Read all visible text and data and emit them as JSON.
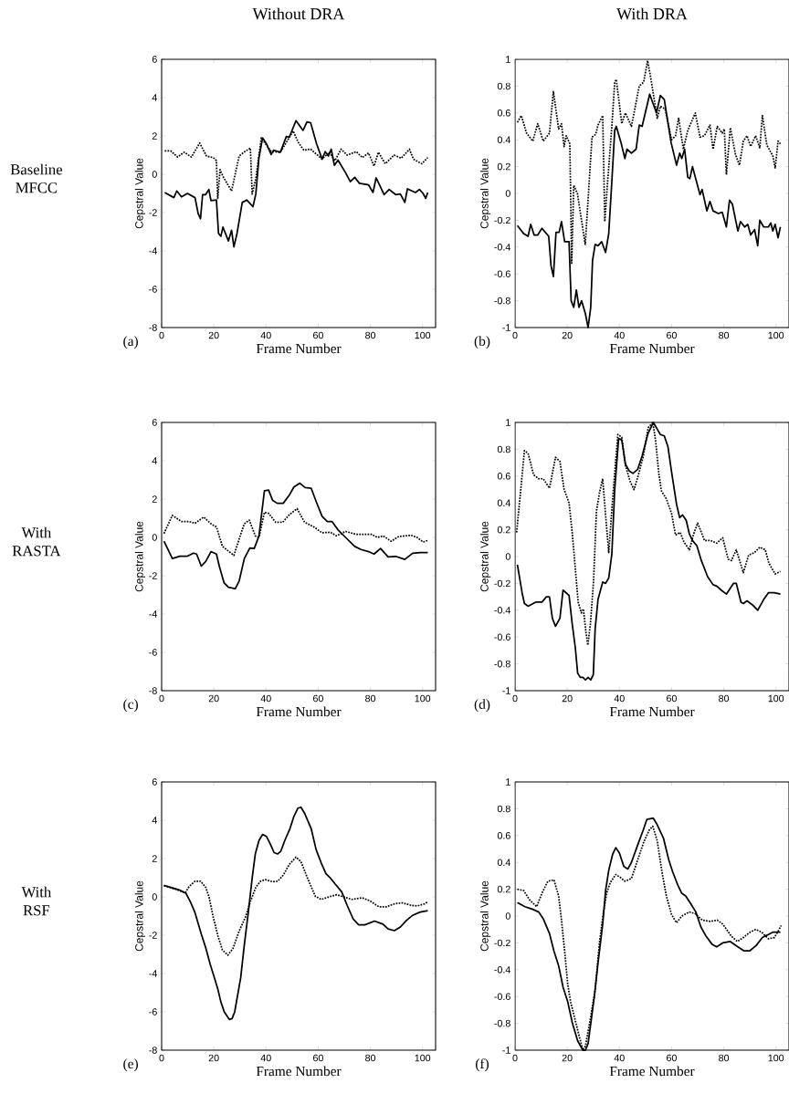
{
  "chart_data": [
    {
      "type": "line",
      "title": "Without DRA",
      "xlabel": "Frame Number",
      "ylabel": "Cepstral Value",
      "xlim": [
        0,
        105
      ],
      "ylim": [
        -8,
        6
      ],
      "xticks": [
        0,
        20,
        40,
        60,
        80,
        100
      ],
      "yticks": [
        -8,
        -6,
        -4,
        -2,
        0,
        2,
        4,
        6
      ],
      "annotations": [
        "(a)",
        "Baseline MFCC"
      ],
      "series": [
        {
          "color": "#000000",
          "line_style": "solid",
          "x": [
            1.2,
            4.7,
            5.8,
            7.6,
            9.9,
            12.8,
            14,
            14.9,
            15.7,
            16.9,
            18.1,
            18.9,
            21,
            21.8,
            22.7,
            23.5,
            25.6,
            26.8,
            27.7,
            28.9,
            30.9,
            32.6,
            35,
            36.1,
            37.3,
            38.7,
            40.2,
            42,
            42.9,
            45.5,
            47.8,
            48.9,
            51.5,
            54.2,
            55.7,
            57.1,
            59.4,
            61.5,
            62.7,
            63.9,
            65,
            66.2,
            67.6,
            70.5,
            72.3,
            74,
            75.8,
            79.3,
            81,
            82.2,
            85.3,
            87.2,
            89.7,
            91.5,
            93.2,
            94.2,
            97.3,
            98.8,
            100.2,
            101.2,
            102
          ],
          "values": [
            -0.95,
            -1.22,
            -0.87,
            -1.18,
            -1.0,
            -1.22,
            -2.05,
            -2.32,
            -1.06,
            -1.06,
            -0.79,
            -1.37,
            -1.34,
            -3.08,
            -3.24,
            -2.76,
            -3.48,
            -2.92,
            -3.79,
            -3.08,
            -1.47,
            -1.34,
            -1.69,
            -1.03,
            0.87,
            1.9,
            1.58,
            1.03,
            1.26,
            1.15,
            1.97,
            1.93,
            2.8,
            2.29,
            2.73,
            2.69,
            1.58,
            0.79,
            1.18,
            0.95,
            1.31,
            0.47,
            0.74,
            0.08,
            -0.39,
            -0.16,
            -0.47,
            -0.55,
            -0.95,
            -0.19,
            -1.06,
            -0.79,
            -1.06,
            -1.03,
            -1.47,
            -0.76,
            -0.95,
            -0.79,
            -1.0,
            -1.26,
            -0.95
          ]
        },
        {
          "color": "#000000",
          "line_style": "dotted",
          "x": [
            1.2,
            3.5,
            6.1,
            8.7,
            11.4,
            14.6,
            17.2,
            19.8,
            21,
            21.5,
            22.4,
            23.5,
            26.8,
            29.7,
            31.5,
            34,
            34.7,
            36.1,
            38.2,
            42,
            45.5,
            50.4,
            52.4,
            54.5,
            57.1,
            61.5,
            64.3,
            66.4,
            68.8,
            71.1,
            74.6,
            76.9,
            79.3,
            81.4,
            83.1,
            85.7,
            89.1,
            91.8,
            95,
            96.5,
            99.7,
            102
          ],
          "values": [
            1.22,
            1.22,
            0.9,
            1.15,
            0.9,
            1.63,
            0.95,
            0.87,
            0.71,
            -1.26,
            0.24,
            -0.11,
            -0.87,
            0.95,
            1.15,
            1.37,
            -1.03,
            -0.24,
            1.9,
            1.18,
            1.15,
            2.26,
            1.66,
            1.26,
            1.31,
            0.79,
            1.15,
            0.71,
            1.31,
            1.0,
            1.18,
            0.87,
            1.11,
            0.43,
            1.15,
            0.55,
            1.0,
            0.84,
            1.31,
            0.79,
            0.55,
            0.87
          ]
        }
      ]
    },
    {
      "type": "line",
      "title": "With DRA",
      "xlabel": "Frame Number",
      "ylabel": "Cepstral Value",
      "xlim": [
        0,
        105
      ],
      "ylim": [
        -1,
        1
      ],
      "xticks": [
        0,
        20,
        40,
        60,
        80,
        100
      ],
      "yticks": [
        -1,
        -0.8,
        -0.6,
        -0.4,
        -0.2,
        0,
        0.2,
        0.4,
        0.6,
        0.8,
        1
      ],
      "annotations": [
        "(b)"
      ],
      "series": [
        {
          "color": "#000000",
          "line_style": "solid",
          "x": [
            0.9,
            3.3,
            5,
            6,
            7.3,
            8.7,
            10.3,
            12.9,
            13.8,
            14.7,
            15.7,
            16.9,
            17.8,
            19,
            20.7,
            21.5,
            22.5,
            23.5,
            24.5,
            25.5,
            27,
            28,
            29,
            29.7,
            30.7,
            31.8,
            33.2,
            34.7,
            35.9,
            37.1,
            38.2,
            38.8,
            40.6,
            42.1,
            42.9,
            44.6,
            46.4,
            47.6,
            48.7,
            51.6,
            54.2,
            55.7,
            57.2,
            59.8,
            61.9,
            63.1,
            63.9,
            65,
            66.2,
            67,
            68,
            70.9,
            71.7,
            73.5,
            74.7,
            75.9,
            77.9,
            79.4,
            81,
            82.2,
            83.3,
            85.4,
            86.4,
            88,
            89.2,
            90.3,
            91.8,
            93,
            93.8,
            95.3,
            97.1,
            98,
            98.8,
            99.7,
            100.8,
            101.7
          ],
          "values": [
            -0.24,
            -0.3,
            -0.32,
            -0.23,
            -0.31,
            -0.31,
            -0.26,
            -0.32,
            -0.54,
            -0.62,
            -0.29,
            -0.29,
            -0.21,
            -0.36,
            -0.36,
            -0.8,
            -0.85,
            -0.72,
            -0.85,
            -0.8,
            -0.9,
            -1.0,
            -0.85,
            -0.5,
            -0.38,
            -0.39,
            -0.36,
            -0.44,
            -0.3,
            0.09,
            0.47,
            0.5,
            0.38,
            0.26,
            0.33,
            0.3,
            0.33,
            0.51,
            0.5,
            0.74,
            0.6,
            0.73,
            0.7,
            0.38,
            0.21,
            0.3,
            0.26,
            0.33,
            0.12,
            0.11,
            0.2,
            -0.01,
            0.03,
            -0.13,
            -0.06,
            -0.13,
            -0.15,
            -0.14,
            -0.25,
            -0.05,
            -0.08,
            -0.28,
            -0.21,
            -0.25,
            -0.23,
            -0.31,
            -0.27,
            -0.39,
            -0.2,
            -0.25,
            -0.25,
            -0.22,
            -0.28,
            -0.23,
            -0.33,
            -0.25
          ]
        },
        {
          "color": "#000000",
          "line_style": "dotted",
          "x": [
            0.9,
            2.4,
            4.4,
            6.8,
            8.7,
            10.8,
            13.2,
            14.7,
            16.7,
            17.8,
            18.8,
            19.6,
            21,
            21.7,
            22.5,
            23.9,
            26.9,
            29.5,
            30.9,
            31.8,
            33.6,
            34.4,
            35.3,
            37.1,
            38.2,
            38.8,
            40.9,
            42.3,
            44.6,
            47.6,
            49.3,
            50.8,
            52.2,
            54.5,
            55.7,
            57.5,
            60,
            61.5,
            62.7,
            64.5,
            66.2,
            69.1,
            70.9,
            72.6,
            74.7,
            75.9,
            77.5,
            79.4,
            80.2,
            81,
            82.5,
            84.5,
            86,
            87.5,
            88.9,
            90.3,
            92.2,
            93.8,
            94.8,
            96.5,
            98.8,
            99.7,
            100.8,
            101.7
          ],
          "values": [
            0.53,
            0.58,
            0.45,
            0.39,
            0.52,
            0.39,
            0.45,
            0.76,
            0.48,
            0.52,
            0.35,
            0.43,
            0.37,
            -0.52,
            0.06,
            0.0,
            -0.38,
            0.42,
            0.44,
            0.51,
            0.58,
            -0.21,
            0.04,
            0.5,
            0.83,
            0.85,
            0.52,
            0.6,
            0.5,
            0.8,
            0.83,
            0.99,
            0.84,
            0.56,
            0.65,
            0.63,
            0.4,
            0.43,
            0.56,
            0.33,
            0.47,
            0.6,
            0.42,
            0.43,
            0.51,
            0.33,
            0.5,
            0.45,
            0.48,
            0.14,
            0.49,
            0.29,
            0.21,
            0.39,
            0.43,
            0.35,
            0.43,
            0.34,
            0.58,
            0.36,
            0.28,
            0.19,
            0.39,
            0.37
          ]
        }
      ]
    },
    {
      "type": "line",
      "xlabel": "Frame Number",
      "ylabel": "Cepstral Value",
      "xlim": [
        0,
        105
      ],
      "ylim": [
        -8,
        6
      ],
      "xticks": [
        0,
        20,
        40,
        60,
        80,
        100
      ],
      "yticks": [
        -8,
        -6,
        -4,
        -2,
        0,
        2,
        4,
        6
      ],
      "annotations": [
        "(c)",
        "With RASTA"
      ],
      "series": [
        {
          "color": "#000000",
          "line_style": "solid",
          "x": [
            0.9,
            4.1,
            7,
            9.9,
            12.2,
            13.4,
            15.2,
            16.9,
            18.9,
            21,
            22.1,
            23.9,
            25.6,
            28.2,
            29.7,
            31.7,
            33.8,
            35.5,
            37.3,
            39.4,
            41,
            42.5,
            44.3,
            46.6,
            48.9,
            50.7,
            53,
            55,
            57.3,
            59.4,
            61.5,
            63.5,
            65.3,
            67.6,
            70.5,
            74,
            76.4,
            79.3,
            81.4,
            83.9,
            86.8,
            89.7,
            93.2,
            96.2,
            99.1,
            102
          ],
          "values": [
            -0.2,
            -1.1,
            -0.98,
            -0.98,
            -0.82,
            -0.87,
            -1.5,
            -1.26,
            -0.74,
            -0.87,
            -1.5,
            -2.36,
            -2.6,
            -2.68,
            -2.28,
            -1.1,
            -0.55,
            -0.58,
            0.08,
            2.44,
            2.47,
            1.94,
            1.78,
            1.78,
            2.2,
            2.63,
            2.83,
            2.6,
            2.57,
            1.81,
            1.1,
            0.83,
            0.83,
            0.39,
            0.0,
            -0.47,
            -0.63,
            -0.74,
            -0.87,
            -0.58,
            -1.02,
            -0.99,
            -1.15,
            -0.83,
            -0.79,
            -0.79
          ]
        },
        {
          "color": "#000000",
          "line_style": "dotted",
          "x": [
            0.9,
            4.1,
            7.6,
            10.5,
            12.8,
            16.1,
            19.2,
            21,
            23.3,
            25.6,
            27.7,
            30.1,
            31.7,
            33.6,
            35.9,
            37.3,
            39.4,
            41,
            43.7,
            46.4,
            48.9,
            51.9,
            54.8,
            58.3,
            61.5,
            64.7,
            67,
            70.5,
            74.6,
            80.4,
            82.7,
            84.9,
            88,
            90.9,
            95.6,
            97.9,
            100.2,
            102
          ],
          "values": [
            0.2,
            1.15,
            0.83,
            0.83,
            0.74,
            1.06,
            0.68,
            0.55,
            -0.47,
            -0.71,
            -0.94,
            0.08,
            0.71,
            0.9,
            0.08,
            0.0,
            1.31,
            1.26,
            0.79,
            0.79,
            1.18,
            1.5,
            0.79,
            0.55,
            0.24,
            0.27,
            0.08,
            0.31,
            0.16,
            0.16,
            0.0,
            0.08,
            -0.2,
            0.05,
            0.11,
            0.0,
            -0.24,
            -0.16
          ]
        }
      ]
    },
    {
      "type": "line",
      "xlabel": "Frame Number",
      "ylabel": "Cepstral Value",
      "xlim": [
        0,
        105
      ],
      "ylim": [
        -1,
        1
      ],
      "xticks": [
        0,
        20,
        40,
        60,
        80,
        100
      ],
      "yticks": [
        -1,
        -0.8,
        -0.6,
        -0.4,
        -0.2,
        0,
        0.2,
        0.4,
        0.6,
        0.8,
        1
      ],
      "annotations": [
        "(d)"
      ],
      "series": [
        {
          "color": "#000000",
          "line_style": "solid",
          "x": [
            0.9,
            2.7,
            3.6,
            5,
            7.9,
            10.3,
            12,
            13.2,
            14.3,
            15.5,
            17.2,
            18.4,
            20.7,
            21.9,
            23.1,
            24,
            25,
            26,
            27,
            28,
            29,
            30,
            30.7,
            31.8,
            33.6,
            34.7,
            35.9,
            37.1,
            38.2,
            39.7,
            40.9,
            42.3,
            43.7,
            45.2,
            47,
            48.7,
            51,
            53,
            54.5,
            55.7,
            57.2,
            58.6,
            60,
            61.9,
            63.1,
            64.2,
            65.6,
            66.8,
            68,
            69.7,
            71.4,
            73.8,
            75.9,
            77.3,
            79,
            81,
            83.7,
            84.8,
            86.6,
            87.5,
            88.9,
            91,
            93,
            95.3,
            97.1,
            99.4,
            101.7
          ],
          "values": [
            -0.06,
            -0.27,
            -0.35,
            -0.37,
            -0.34,
            -0.34,
            -0.3,
            -0.3,
            -0.46,
            -0.52,
            -0.46,
            -0.25,
            -0.29,
            -0.5,
            -0.68,
            -0.87,
            -0.9,
            -0.9,
            -0.92,
            -0.9,
            -0.92,
            -0.88,
            -0.54,
            -0.32,
            -0.19,
            -0.2,
            -0.16,
            0.02,
            0.5,
            0.88,
            0.87,
            0.69,
            0.64,
            0.62,
            0.65,
            0.75,
            0.92,
            1.0,
            0.95,
            0.91,
            0.9,
            0.82,
            0.63,
            0.39,
            0.29,
            0.31,
            0.27,
            0.17,
            0.12,
            0.08,
            -0.03,
            -0.15,
            -0.21,
            -0.22,
            -0.25,
            -0.28,
            -0.2,
            -0.2,
            -0.34,
            -0.35,
            -0.33,
            -0.36,
            -0.4,
            -0.32,
            -0.27,
            -0.27,
            -0.28
          ]
        },
        {
          "color": "#000000",
          "line_style": "dotted",
          "x": [
            0.6,
            2.1,
            3.6,
            5,
            7.1,
            9.1,
            10.8,
            13.2,
            15.5,
            17.2,
            18.8,
            20.7,
            21.9,
            23.1,
            24.2,
            25.4,
            26.2,
            27.2,
            27.9,
            28.9,
            30.1,
            31.2,
            32.4,
            33.6,
            34.7,
            35.9,
            37.6,
            39.4,
            40.9,
            42.3,
            44.1,
            45.6,
            47.6,
            49.3,
            51,
            52.8,
            53.9,
            55.1,
            56.1,
            58,
            60,
            61.5,
            63.3,
            64.7,
            66.8,
            68.5,
            70,
            72.6,
            74.9,
            77.3,
            79.6,
            81.7,
            82.9,
            84.8,
            87.5,
            89.5,
            91.8,
            93.8,
            95.9,
            97.3,
            99.7,
            101.7
          ],
          "values": [
            0.18,
            0.48,
            0.79,
            0.77,
            0.61,
            0.58,
            0.58,
            0.51,
            0.74,
            0.71,
            0.5,
            0.4,
            0.18,
            -0.09,
            -0.34,
            -0.42,
            -0.39,
            -0.57,
            -0.66,
            -0.5,
            -0.18,
            0.34,
            0.48,
            0.58,
            0.31,
            0.03,
            0.48,
            0.91,
            0.89,
            0.68,
            0.56,
            0.5,
            0.63,
            0.76,
            0.96,
            1.0,
            0.86,
            0.62,
            0.49,
            0.43,
            0.32,
            0.16,
            0.18,
            0.11,
            0.05,
            0.17,
            0.25,
            0.12,
            0.12,
            0.1,
            0.14,
            -0.02,
            -0.03,
            0.05,
            -0.12,
            0.01,
            0.03,
            0.07,
            0.05,
            -0.05,
            -0.13,
            -0.11
          ]
        }
      ]
    },
    {
      "type": "line",
      "xlabel": "Frame Number",
      "ylabel": "Cepstral Value",
      "xlim": [
        0,
        105
      ],
      "ylim": [
        -8,
        6
      ],
      "xticks": [
        0,
        20,
        40,
        60,
        80,
        100
      ],
      "yticks": [
        -8,
        -6,
        -4,
        -2,
        0,
        2,
        4,
        6
      ],
      "annotations": [
        "(e)",
        "With RSF"
      ],
      "series": [
        {
          "color": "#000000",
          "line_style": "solid",
          "x": [
            0.9,
            4.1,
            7,
            9.3,
            11.1,
            12.8,
            15.2,
            16.9,
            18.6,
            20.4,
            21.6,
            22.7,
            24,
            26,
            27,
            28,
            30.3,
            31.7,
            33.2,
            34.7,
            35.9,
            37.3,
            38.7,
            40.2,
            41.7,
            43.1,
            44.5,
            45.7,
            47.2,
            49.2,
            50.7,
            52.2,
            53.4,
            54.8,
            57.3,
            59.2,
            61.2,
            63,
            64.7,
            66.4,
            69,
            71.1,
            73.4,
            75.5,
            77.9,
            81.6,
            84.8,
            86.8,
            89.2,
            91.5,
            93.8,
            96.2,
            99.1,
            102
          ],
          "values": [
            0.61,
            0.47,
            0.35,
            0.19,
            -0.28,
            -0.83,
            -1.94,
            -2.65,
            -3.51,
            -4.3,
            -4.85,
            -5.48,
            -6.0,
            -6.4,
            -6.35,
            -6.0,
            -4.22,
            -2.49,
            -0.83,
            0.98,
            2.24,
            2.94,
            3.26,
            3.15,
            2.74,
            2.31,
            2.24,
            2.39,
            2.94,
            3.57,
            4.2,
            4.63,
            4.68,
            4.36,
            3.57,
            2.47,
            1.76,
            1.21,
            0.98,
            0.69,
            0.27,
            -0.44,
            -1.15,
            -1.46,
            -1.46,
            -1.26,
            -1.42,
            -1.67,
            -1.76,
            -1.57,
            -1.23,
            -0.96,
            -0.79,
            -0.72
          ]
        },
        {
          "color": "#000000",
          "line_style": "dotted",
          "x": [
            0.9,
            4.7,
            9.1,
            10.5,
            12.8,
            14.9,
            16.9,
            18.1,
            19.8,
            21.6,
            23.3,
            25.4,
            27.4,
            29.7,
            32.1,
            34,
            36.1,
            37.9,
            39.9,
            42.5,
            44.5,
            46.6,
            48.9,
            51.5,
            53.4,
            55.9,
            58.9,
            61.2,
            64.1,
            67,
            69.9,
            72.8,
            76.9,
            79.8,
            83.3,
            86.2,
            89.2,
            92.3,
            95.6,
            98.1,
            100.8,
            102
          ],
          "values": [
            0.58,
            0.43,
            0.22,
            0.54,
            0.82,
            0.82,
            0.5,
            0.03,
            -1.07,
            -2.05,
            -2.77,
            -3.04,
            -2.68,
            -1.78,
            -1.07,
            -0.25,
            0.5,
            0.82,
            0.9,
            0.79,
            0.82,
            1.13,
            1.69,
            2.08,
            1.84,
            0.98,
            0.03,
            -0.13,
            0.0,
            0.11,
            0.0,
            -0.13,
            -0.05,
            -0.2,
            -0.52,
            -0.52,
            -0.36,
            -0.31,
            -0.44,
            -0.47,
            -0.36,
            -0.25
          ]
        }
      ]
    },
    {
      "type": "line",
      "xlabel": "Frame Number",
      "ylabel": "Cepstral Value",
      "xlim": [
        0,
        105
      ],
      "ylim": [
        -1,
        1
      ],
      "xticks": [
        0,
        20,
        40,
        60,
        80,
        100
      ],
      "yticks": [
        -1,
        -0.8,
        -0.6,
        -0.4,
        -0.2,
        0,
        0.2,
        0.4,
        0.6,
        0.8,
        1
      ],
      "annotations": [
        "(f)"
      ],
      "series": [
        {
          "color": "#000000",
          "line_style": "solid",
          "x": [
            0.9,
            3.8,
            6.8,
            9.1,
            10.8,
            13.2,
            14.9,
            16.7,
            18.4,
            20.2,
            22,
            24,
            26,
            27,
            28,
            30.4,
            31.8,
            33.6,
            34.7,
            35.9,
            37.4,
            38.6,
            40,
            41.7,
            43.2,
            44.6,
            47,
            49.1,
            50.5,
            53,
            54.5,
            56.9,
            58.9,
            60.4,
            62.4,
            63.9,
            65.4,
            67.4,
            69.3,
            71.2,
            73.2,
            75.5,
            77.3,
            79.6,
            82.5,
            85.4,
            87.8,
            89.9,
            92.4,
            94.8,
            96.9,
            98.8,
            101.7
          ],
          "values": [
            0.1,
            0.07,
            0.05,
            0.03,
            -0.02,
            -0.13,
            -0.26,
            -0.37,
            -0.53,
            -0.64,
            -0.8,
            -0.93,
            -1.0,
            -1.0,
            -0.95,
            -0.6,
            -0.35,
            -0.06,
            0.19,
            0.34,
            0.46,
            0.51,
            0.47,
            0.37,
            0.35,
            0.4,
            0.53,
            0.64,
            0.72,
            0.73,
            0.68,
            0.58,
            0.42,
            0.33,
            0.23,
            0.17,
            0.15,
            0.09,
            0.03,
            -0.08,
            -0.15,
            -0.21,
            -0.23,
            -0.2,
            -0.19,
            -0.23,
            -0.26,
            -0.26,
            -0.22,
            -0.16,
            -0.14,
            -0.12,
            -0.12
          ]
        },
        {
          "color": "#000000",
          "line_style": "dotted",
          "x": [
            0.9,
            3.3,
            5.6,
            8.3,
            10.3,
            12.6,
            14.9,
            16.7,
            17.8,
            19,
            20.2,
            21.3,
            24,
            26,
            27,
            29,
            30.7,
            32.4,
            33.6,
            35.1,
            36.5,
            38.6,
            40.2,
            42.1,
            44.6,
            47.2,
            49.3,
            51.4,
            52.8,
            54.5,
            56.3,
            58,
            60,
            61.9,
            63.9,
            66.8,
            68.9,
            71.7,
            74.9,
            77.5,
            79.6,
            82.9,
            85.2,
            87.5,
            90.1,
            92.2,
            94.5,
            97.1,
            99.4,
            101.2,
            102
          ],
          "values": [
            0.2,
            0.19,
            0.12,
            0.07,
            0.17,
            0.26,
            0.27,
            0.15,
            -0.03,
            -0.26,
            -0.51,
            -0.64,
            -0.85,
            -1.0,
            -0.97,
            -0.75,
            -0.55,
            -0.19,
            -0.01,
            0.17,
            0.25,
            0.31,
            0.29,
            0.26,
            0.28,
            0.43,
            0.55,
            0.64,
            0.67,
            0.56,
            0.33,
            0.15,
            0.01,
            -0.05,
            0.0,
            0.03,
            0.02,
            -0.03,
            -0.04,
            -0.03,
            -0.06,
            -0.15,
            -0.19,
            -0.16,
            -0.12,
            -0.1,
            -0.12,
            -0.17,
            -0.16,
            -0.1,
            -0.07
          ]
        }
      ]
    }
  ]
}
